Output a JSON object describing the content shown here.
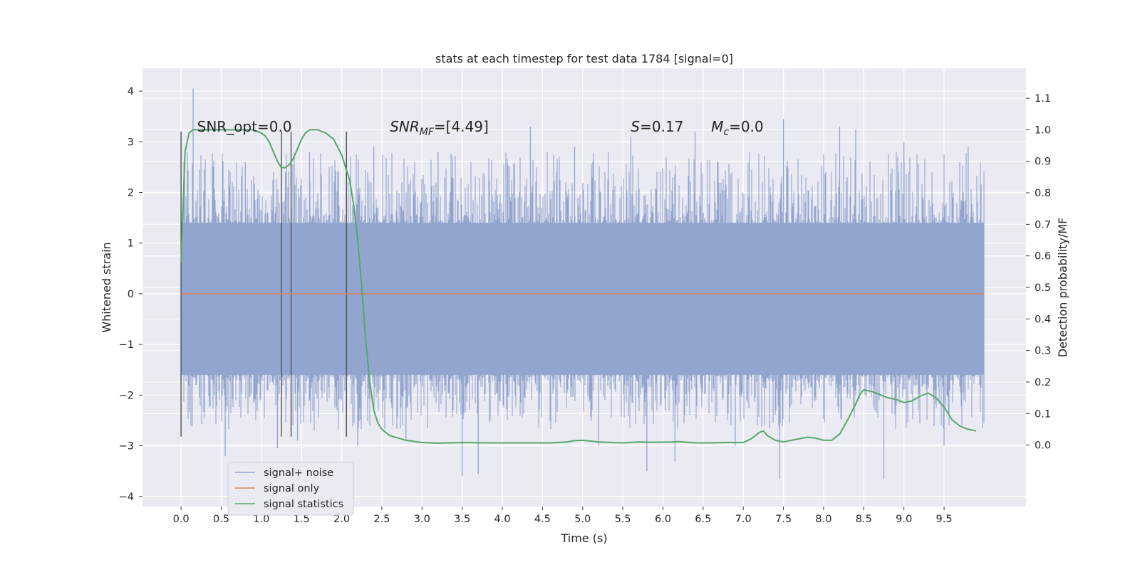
{
  "chart_data": {
    "type": "line",
    "title": "stats at each timestep for test data 1784 [signal=0]",
    "xlabel": "Time (s)",
    "ylabel": "Whitened strain",
    "ylabel_right": "Detection probability/MF",
    "xlim": [
      -0.48,
      10.52
    ],
    "ylim": [
      -4.2,
      4.45
    ],
    "ylim_right": [
      -0.195,
      1.195
    ],
    "x_ticks": [
      0.0,
      0.5,
      1.0,
      1.5,
      2.0,
      2.5,
      3.0,
      3.5,
      4.0,
      4.5,
      5.0,
      5.5,
      6.0,
      6.5,
      7.0,
      7.5,
      8.0,
      8.5,
      9.0,
      9.5
    ],
    "x_tick_labels": [
      "0.0",
      "0.5",
      "1.0",
      "1.5",
      "2.0",
      "2.5",
      "3.0",
      "3.5",
      "4.0",
      "4.5",
      "5.0",
      "5.5",
      "6.0",
      "6.5",
      "7.0",
      "7.5",
      "8.0",
      "8.5",
      "9.0",
      "9.5"
    ],
    "y_ticks": [
      -4,
      -3,
      -2,
      -1,
      0,
      1,
      2,
      3,
      4
    ],
    "y_tick_labels": [
      "−4",
      "−3",
      "−2",
      "−1",
      "0",
      "1",
      "2",
      "3",
      "4"
    ],
    "y_ticks_right": [
      0.0,
      0.1,
      0.2,
      0.3,
      0.4,
      0.5,
      0.6,
      0.7,
      0.8,
      0.9,
      1.0,
      1.1
    ],
    "y_tick_labels_right": [
      "0.0",
      "0.1",
      "0.2",
      "0.3",
      "0.4",
      "0.5",
      "0.6",
      "0.7",
      "0.8",
      "0.9",
      "1.0",
      "1.1"
    ],
    "grid": true,
    "legend_position": "lower-left",
    "annotations": [
      {
        "text": "SNR_opt=0.0",
        "x": 0.2,
        "y": 3.2
      },
      {
        "text": "SNR_MF=[4.49]",
        "x": 2.6,
        "y": 3.2
      },
      {
        "text": "S=0.17",
        "x": 5.6,
        "y": 3.2
      },
      {
        "text": "M_c=0.0",
        "x": 6.6,
        "y": 3.2
      }
    ],
    "vertical_lines": {
      "x": [
        0.0,
        1.25,
        1.37,
        2.06
      ],
      "ymin": -2.82,
      "ymax": 3.2
    },
    "series": [
      {
        "name": "signal+ noise",
        "color": "#92a5cf",
        "axis": "left",
        "x_range": [
          0.0,
          10.0
        ],
        "band": [
          -1.6,
          1.4
        ],
        "spikes": [
          {
            "x": 0.15,
            "y": 4.05
          },
          {
            "x": 0.4,
            "y": 2.5
          },
          {
            "x": 0.55,
            "y": -3.2
          },
          {
            "x": 0.8,
            "y": 2.6
          },
          {
            "x": 1.2,
            "y": -3.05
          },
          {
            "x": 1.3,
            "y": 2.4
          },
          {
            "x": 1.45,
            "y": -2.9
          },
          {
            "x": 1.6,
            "y": 2.8
          },
          {
            "x": 2.2,
            "y": -3.0
          },
          {
            "x": 2.4,
            "y": 2.9
          },
          {
            "x": 2.8,
            "y": -2.9
          },
          {
            "x": 3.2,
            "y": 2.8
          },
          {
            "x": 3.5,
            "y": -3.6
          },
          {
            "x": 3.7,
            "y": -3.55
          },
          {
            "x": 4.35,
            "y": 3.3
          },
          {
            "x": 4.9,
            "y": 2.9
          },
          {
            "x": 5.2,
            "y": -3.0
          },
          {
            "x": 5.6,
            "y": 3.1
          },
          {
            "x": 5.8,
            "y": -3.5
          },
          {
            "x": 6.15,
            "y": -3.3
          },
          {
            "x": 6.4,
            "y": 3.2
          },
          {
            "x": 6.9,
            "y": -3.0
          },
          {
            "x": 7.45,
            "y": -3.65
          },
          {
            "x": 7.5,
            "y": 3.45
          },
          {
            "x": 8.2,
            "y": 3.3
          },
          {
            "x": 8.4,
            "y": 3.25
          },
          {
            "x": 8.75,
            "y": -3.65
          },
          {
            "x": 9.0,
            "y": 3.0
          },
          {
            "x": 9.5,
            "y": -3.0
          },
          {
            "x": 9.8,
            "y": 2.9
          }
        ]
      },
      {
        "name": "signal only",
        "color": "#dd8452",
        "axis": "left",
        "x": [
          0.0,
          10.0
        ],
        "y": [
          0.0,
          0.0
        ]
      },
      {
        "name": "signal statistics",
        "color": "#55a868",
        "axis": "right",
        "x": [
          0.0,
          0.05,
          0.1,
          0.15,
          0.3,
          0.5,
          0.7,
          0.9,
          1.0,
          1.05,
          1.1,
          1.15,
          1.2,
          1.25,
          1.3,
          1.35,
          1.4,
          1.45,
          1.5,
          1.55,
          1.6,
          1.65,
          1.7,
          1.8,
          1.9,
          2.0,
          2.05,
          2.1,
          2.15,
          2.2,
          2.25,
          2.3,
          2.35,
          2.4,
          2.45,
          2.5,
          2.6,
          2.8,
          3.0,
          3.2,
          3.5,
          3.8,
          4.0,
          4.3,
          4.6,
          4.8,
          4.9,
          5.0,
          5.2,
          5.5,
          5.7,
          5.9,
          6.1,
          6.2,
          6.4,
          6.6,
          6.8,
          7.0,
          7.1,
          7.2,
          7.25,
          7.3,
          7.4,
          7.5,
          7.6,
          7.7,
          7.8,
          7.9,
          8.0,
          8.1,
          8.2,
          8.3,
          8.4,
          8.45,
          8.5,
          8.6,
          8.7,
          8.8,
          8.9,
          9.0,
          9.1,
          9.2,
          9.3,
          9.4,
          9.5,
          9.6,
          9.7,
          9.8,
          9.9
        ],
        "y": [
          0.58,
          0.93,
          0.99,
          1.0,
          1.0,
          1.0,
          1.0,
          1.0,
          0.99,
          0.98,
          0.96,
          0.93,
          0.9,
          0.88,
          0.88,
          0.89,
          0.91,
          0.94,
          0.97,
          0.99,
          1.0,
          1.0,
          1.0,
          0.99,
          0.97,
          0.92,
          0.88,
          0.84,
          0.76,
          0.65,
          0.5,
          0.33,
          0.2,
          0.11,
          0.07,
          0.05,
          0.03,
          0.015,
          0.008,
          0.006,
          0.008,
          0.007,
          0.007,
          0.007,
          0.007,
          0.01,
          0.014,
          0.015,
          0.01,
          0.007,
          0.01,
          0.009,
          0.01,
          0.011,
          0.007,
          0.007,
          0.008,
          0.008,
          0.02,
          0.04,
          0.045,
          0.03,
          0.015,
          0.01,
          0.015,
          0.02,
          0.025,
          0.022,
          0.015,
          0.015,
          0.035,
          0.08,
          0.13,
          0.16,
          0.175,
          0.17,
          0.16,
          0.15,
          0.145,
          0.135,
          0.14,
          0.155,
          0.165,
          0.15,
          0.12,
          0.08,
          0.06,
          0.05,
          0.045
        ]
      }
    ]
  }
}
